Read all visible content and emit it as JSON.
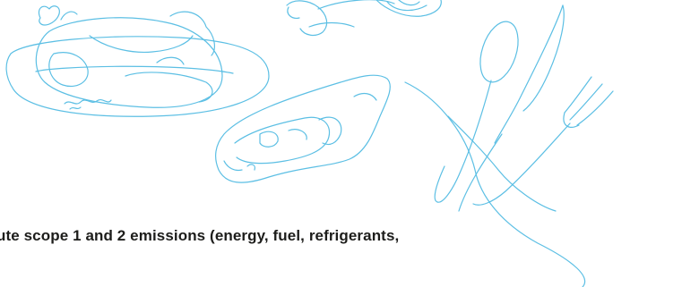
{
  "illustration": {
    "items": [
      "roast-chicken",
      "drumstick",
      "steak",
      "spoon",
      "knife",
      "fork"
    ],
    "line_color": "#5cbfe4"
  },
  "caption": {
    "text": "ute scope 1 and 2 emissions (energy, fuel, refrigerants,"
  }
}
